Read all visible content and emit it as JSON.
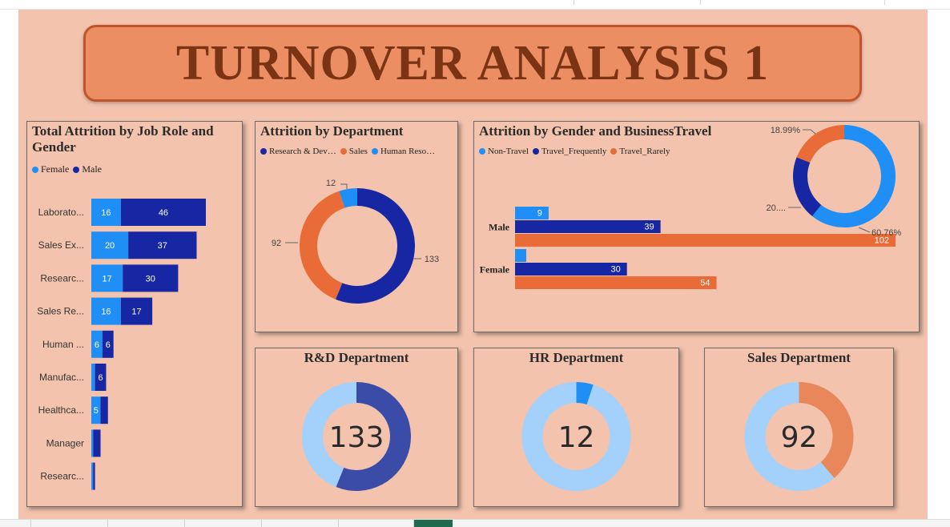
{
  "dashboard_title": "TURNOVER ANALYSIS 1",
  "colors": {
    "female": "#1f8ff5",
    "male": "#1726a2",
    "rnd": "#1726a2",
    "sales": "#e86b38",
    "hr": "#1f8ff5",
    "non_travel": "#1f8ff5",
    "travel_frequently": "#1726a2",
    "travel_rarely": "#e86b38",
    "kpi_track": "#a3d1fb",
    "kpi_rnd": "#3b4ba8",
    "kpi_hr": "#1f8ff5",
    "kpi_sales": "#e8875a"
  },
  "job_role_panel": {
    "title_line1": "Total Attrition by Job Role and",
    "title_line2": "Gender",
    "legend": [
      "Female",
      "Male"
    ]
  },
  "department_panel": {
    "title": "Attrition by Department",
    "legend": [
      "Research & Dev…",
      "Sales",
      "Human Reso…"
    ]
  },
  "travel_panel": {
    "title": "Attrition by Gender and BusinessTravel",
    "legend": [
      "Non-Travel",
      "Travel_Frequently",
      "Travel_Rarely"
    ]
  },
  "kpi": {
    "rnd": {
      "title": "R&D Department",
      "value": "133"
    },
    "hr": {
      "title": "HR Department",
      "value": "12"
    },
    "sales": {
      "title": "Sales Department",
      "value": "92"
    }
  },
  "chart_data": [
    {
      "id": "job_role",
      "type": "bar",
      "orientation": "horizontal",
      "stacked": true,
      "title": "Total Attrition by Job Role and Gender",
      "categories": [
        "Laborato...",
        "Sales Ex...",
        "Researc...",
        "Sales Re...",
        "Human ...",
        "Manufac...",
        "Healthca...",
        "Manager",
        "Researc..."
      ],
      "series": [
        {
          "name": "Female",
          "values": [
            16,
            20,
            17,
            16,
            6,
            2,
            5,
            1,
            1
          ],
          "labels": [
            "16",
            "20",
            "17",
            "16",
            "6",
            "",
            "5",
            "",
            ""
          ]
        },
        {
          "name": "Male",
          "values": [
            46,
            37,
            30,
            17,
            6,
            6,
            4,
            4,
            1
          ],
          "labels": [
            "46",
            "37",
            "30",
            "17",
            "6",
            "6",
            "",
            "",
            ""
          ]
        }
      ],
      "xlim": [
        0,
        65
      ]
    },
    {
      "id": "department",
      "type": "pie",
      "donut": true,
      "title": "Attrition by Department",
      "categories": [
        "Research & Development",
        "Sales",
        "Human Resources"
      ],
      "values": [
        133,
        92,
        12
      ],
      "labels": [
        "133",
        "92",
        "12"
      ]
    },
    {
      "id": "travel_bars",
      "type": "bar",
      "orientation": "horizontal",
      "title": "Attrition by Gender and BusinessTravel",
      "categories": [
        "Male",
        "Female"
      ],
      "series": [
        {
          "name": "Non-Travel",
          "values": [
            9,
            3
          ],
          "labels": [
            "9",
            ""
          ]
        },
        {
          "name": "Travel_Frequently",
          "values": [
            39,
            30
          ],
          "labels": [
            "39",
            "30"
          ]
        },
        {
          "name": "Travel_Rarely",
          "values": [
            102,
            54
          ],
          "labels": [
            "102",
            "54"
          ]
        }
      ],
      "xlim": [
        0,
        102
      ]
    },
    {
      "id": "travel_donut",
      "type": "pie",
      "donut": true,
      "categories": [
        "Non-Travel",
        "Travel_Frequently",
        "Travel_Rarely"
      ],
      "values": [
        60.76,
        20.25,
        18.99
      ],
      "labels": [
        "60.76%",
        "20....",
        "18.99%"
      ]
    },
    {
      "id": "kpi_rnd",
      "type": "pie",
      "donut": true,
      "title": "R&D Department",
      "categories": [
        "R&D",
        "Other"
      ],
      "values": [
        133,
        104
      ],
      "center_label": "133"
    },
    {
      "id": "kpi_hr",
      "type": "pie",
      "donut": true,
      "title": "HR Department",
      "categories": [
        "HR",
        "Other"
      ],
      "values": [
        12,
        225
      ],
      "center_label": "12"
    },
    {
      "id": "kpi_sales",
      "type": "pie",
      "donut": true,
      "title": "Sales Department",
      "categories": [
        "Sales",
        "Other"
      ],
      "values": [
        92,
        145
      ],
      "center_label": "92"
    }
  ]
}
